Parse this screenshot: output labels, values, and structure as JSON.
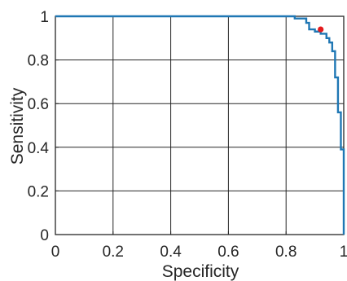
{
  "chart_data": {
    "type": "line",
    "xlabel": "Specificity",
    "ylabel": "Sensitivity",
    "xlim": [
      0,
      1
    ],
    "ylim": [
      0,
      1
    ],
    "xticks": [
      0,
      0.2,
      0.4,
      0.6,
      0.8,
      1
    ],
    "yticks": [
      0,
      0.2,
      0.4,
      0.6,
      0.8,
      1
    ],
    "xtick_labels": [
      "0",
      "0.2",
      "0.4",
      "0.6",
      "0.8",
      "1"
    ],
    "ytick_labels": [
      "0",
      "0.2",
      "0.4",
      "0.6",
      "0.8",
      "1"
    ],
    "grid": true,
    "series": [
      {
        "color": "#1f77b4",
        "x": [
          0,
          0.83,
          0.83,
          0.87,
          0.87,
          0.88,
          0.88,
          0.9,
          0.9,
          0.92,
          0.92,
          0.94,
          0.94,
          0.95,
          0.95,
          0.96,
          0.96,
          0.97,
          0.97,
          0.98,
          0.98,
          0.99,
          0.99,
          1.0,
          1.0
        ],
        "y": [
          1,
          1,
          0.99,
          0.99,
          0.97,
          0.97,
          0.94,
          0.94,
          0.93,
          0.93,
          0.92,
          0.92,
          0.9,
          0.9,
          0.88,
          0.88,
          0.84,
          0.84,
          0.72,
          0.72,
          0.56,
          0.56,
          0.39,
          0.39,
          0
        ]
      }
    ],
    "marker": {
      "x": 0.92,
      "y": 0.94,
      "color": "#e41a1c"
    }
  }
}
